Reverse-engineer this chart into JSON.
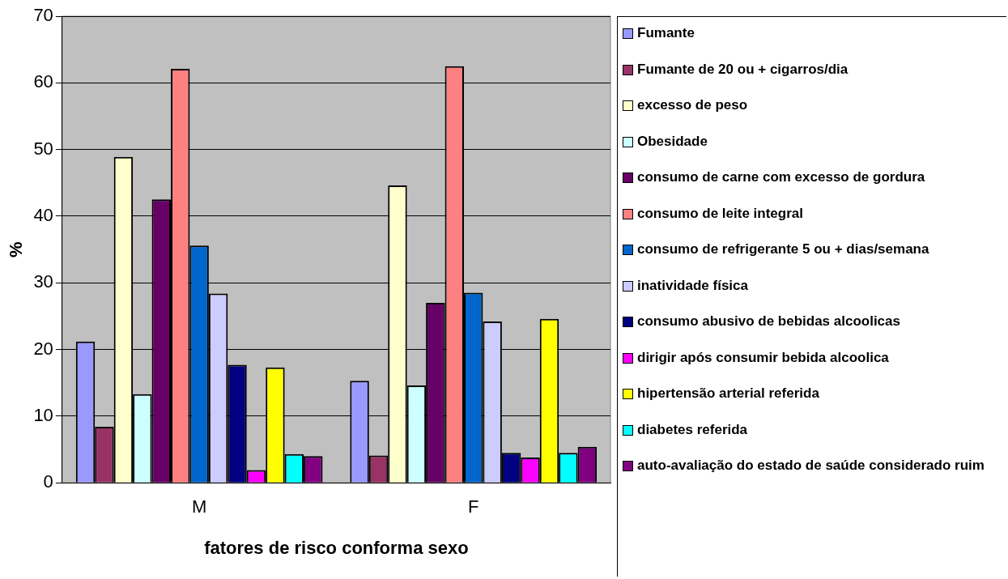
{
  "chart_data": {
    "type": "bar",
    "xlabel": "fatores de risco conforma sexo",
    "ylabel": "%",
    "categories": [
      "M",
      "F"
    ],
    "ylim": [
      0,
      70
    ],
    "yticks": [
      0,
      10,
      20,
      30,
      40,
      50,
      60,
      70
    ],
    "grid": "y",
    "legend": "right",
    "series": [
      {
        "name": "Fumante",
        "color": "#9999ff",
        "values": [
          21.2,
          15.3
        ]
      },
      {
        "name": "Fumante de 20 ou + cigarros/dia",
        "color": "#993366",
        "values": [
          8.4,
          4.1
        ]
      },
      {
        "name": "excesso de peso",
        "color": "#ffffcc",
        "values": [
          48.9,
          44.6
        ]
      },
      {
        "name": "Obesidade",
        "color": "#ccffff",
        "values": [
          13.3,
          14.6
        ]
      },
      {
        "name": "consumo de carne com excesso de gordura",
        "color": "#660066",
        "values": [
          42.5,
          27.0
        ]
      },
      {
        "name": "consumo de leite integral",
        "color": "#ff8080",
        "values": [
          62.1,
          62.5
        ]
      },
      {
        "name": "consumo de refrigerante 5 ou + dias/semana",
        "color": "#0066cc",
        "values": [
          35.6,
          28.5
        ]
      },
      {
        "name": "inatividade física",
        "color": "#ccccff",
        "values": [
          28.4,
          24.2
        ]
      },
      {
        "name": "consumo abusivo de bebidas alcoolicas",
        "color": "#000080",
        "values": [
          17.7,
          4.5
        ]
      },
      {
        "name": "dirigir após consumir bebida alcoolica",
        "color": "#ff00ff",
        "values": [
          1.9,
          3.8
        ]
      },
      {
        "name": "hipertensão arterial referida",
        "color": "#ffff00",
        "values": [
          17.3,
          24.6
        ]
      },
      {
        "name": "diabetes referida",
        "color": "#00ffff",
        "values": [
          4.3,
          4.5
        ]
      },
      {
        "name": "auto-avaliação do estado de saúde considerado ruim",
        "color": "#800080",
        "values": [
          4.0,
          5.4
        ]
      }
    ]
  }
}
